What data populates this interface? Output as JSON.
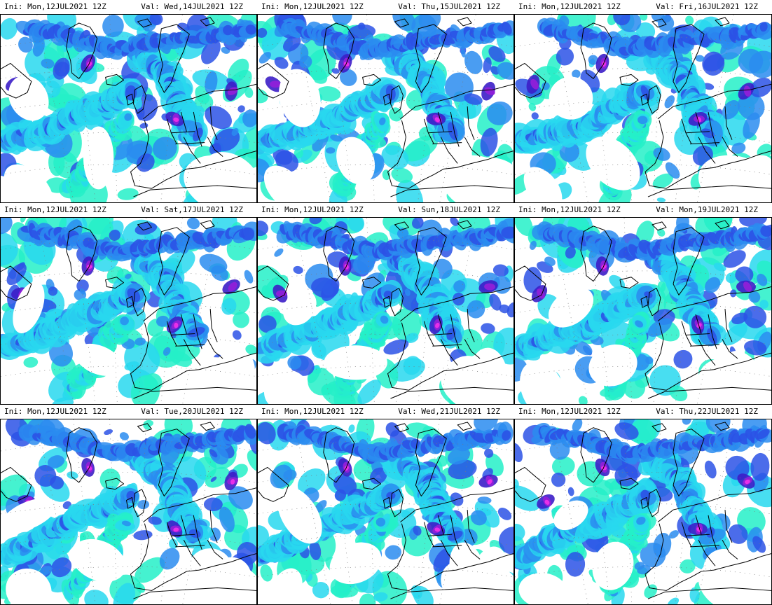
{
  "panels": [
    {
      "init": "Ini: Mon,12JUL2021 12Z",
      "valid": "Val: Wed,14JUL2021 12Z"
    },
    {
      "init": "Ini: Mon,12JUL2021 12Z",
      "valid": "Val: Thu,15JUL2021 12Z"
    },
    {
      "init": "Ini: Mon,12JUL2021 12Z",
      "valid": "Val: Fri,16JUL2021 12Z"
    },
    {
      "init": "Ini: Mon,12JUL2021 12Z",
      "valid": "Val: Sat,17JUL2021 12Z"
    },
    {
      "init": "Ini: Mon,12JUL2021 12Z",
      "valid": "Val: Sun,18JUL2021 12Z"
    },
    {
      "init": "Ini: Mon,12JUL2021 12Z",
      "valid": "Val: Mon,19JUL2021 12Z"
    },
    {
      "init": "Ini: Mon,12JUL2021 12Z",
      "valid": "Val: Tue,20JUL2021 12Z"
    },
    {
      "init": "Ini: Mon,12JUL2021 12Z",
      "valid": "Val: Wed,21JUL2021 12Z"
    },
    {
      "init": "Ini: Mon,12JUL2021 12Z",
      "valid": "Val: Thu,22JUL2021 12Z"
    }
  ],
  "colors": {
    "light": "#24f0c8",
    "cyan": "#28d8ee",
    "blue_light": "#2a8cf0",
    "blue": "#2b52e6",
    "indigo": "#3c1ec8",
    "purple": "#9020d8",
    "magenta": "#e830e8"
  }
}
